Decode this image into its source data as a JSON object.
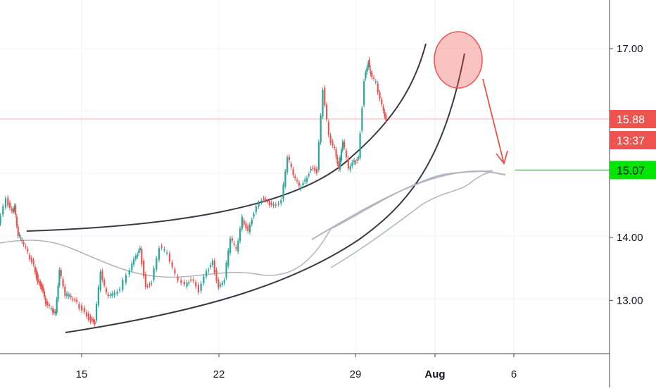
{
  "chart_data": {
    "type": "candlestick",
    "title": "",
    "xlabel": "",
    "ylabel": "",
    "ylim": [
      12.1,
      17.65
    ],
    "grid": true,
    "x_ticks": [
      "15",
      "22",
      "29",
      "Aug",
      "6"
    ],
    "y_ticks": [
      "17.00",
      "14.00",
      "13.00"
    ],
    "current_price": {
      "value": 15.88,
      "label": "15.88",
      "countdown": "13:37"
    },
    "target_level": {
      "value": 15.07,
      "label": "15.07"
    },
    "price_path": [
      [
        10.8,
        14.2
      ],
      [
        11.2,
        14.6
      ],
      [
        11.5,
        14.4
      ],
      [
        11.6,
        14.5
      ],
      [
        11.8,
        14.05
      ],
      [
        12.0,
        13.95
      ],
      [
        12.3,
        13.75
      ],
      [
        12.6,
        13.55
      ],
      [
        12.8,
        13.3
      ],
      [
        13.0,
        13.2
      ],
      [
        13.2,
        12.95
      ],
      [
        13.5,
        12.85
      ],
      [
        13.7,
        12.8
      ],
      [
        13.9,
        13.5
      ],
      [
        14.2,
        13.1
      ],
      [
        14.5,
        13.05
      ],
      [
        14.8,
        12.95
      ],
      [
        15.2,
        12.8
      ],
      [
        15.5,
        12.68
      ],
      [
        15.7,
        12.65
      ],
      [
        16.0,
        13.45
      ],
      [
        16.3,
        13.1
      ],
      [
        16.6,
        13.1
      ],
      [
        17.0,
        13.2
      ],
      [
        17.5,
        13.5
      ],
      [
        17.8,
        13.7
      ],
      [
        18.0,
        13.8
      ],
      [
        18.3,
        13.2
      ],
      [
        18.6,
        13.3
      ],
      [
        19.0,
        13.85
      ],
      [
        19.4,
        13.75
      ],
      [
        19.8,
        13.4
      ],
      [
        20.3,
        13.25
      ],
      [
        20.6,
        13.35
      ],
      [
        21.0,
        13.15
      ],
      [
        21.4,
        13.45
      ],
      [
        21.7,
        13.6
      ],
      [
        22.0,
        13.2
      ],
      [
        22.3,
        13.35
      ],
      [
        22.6,
        14.0
      ],
      [
        22.9,
        13.8
      ],
      [
        23.2,
        14.3
      ],
      [
        23.5,
        14.1
      ],
      [
        23.8,
        14.4
      ],
      [
        24.2,
        14.6
      ],
      [
        24.5,
        14.55
      ],
      [
        24.8,
        14.5
      ],
      [
        25.2,
        14.6
      ],
      [
        25.5,
        15.3
      ],
      [
        25.8,
        15.0
      ],
      [
        26.1,
        14.8
      ],
      [
        26.4,
        14.9
      ],
      [
        26.7,
        15.1
      ],
      [
        27.0,
        15.05
      ],
      [
        27.3,
        16.35
      ],
      [
        27.6,
        15.6
      ],
      [
        27.9,
        15.4
      ],
      [
        28.1,
        15.1
      ],
      [
        28.3,
        15.55
      ],
      [
        28.6,
        15.1
      ],
      [
        28.9,
        15.2
      ],
      [
        29.1,
        15.25
      ],
      [
        29.4,
        16.5
      ],
      [
        29.6,
        16.8
      ],
      [
        29.7,
        16.6
      ],
      [
        30.0,
        16.45
      ],
      [
        30.3,
        16.1
      ],
      [
        30.5,
        15.88
      ]
    ]
  }
}
